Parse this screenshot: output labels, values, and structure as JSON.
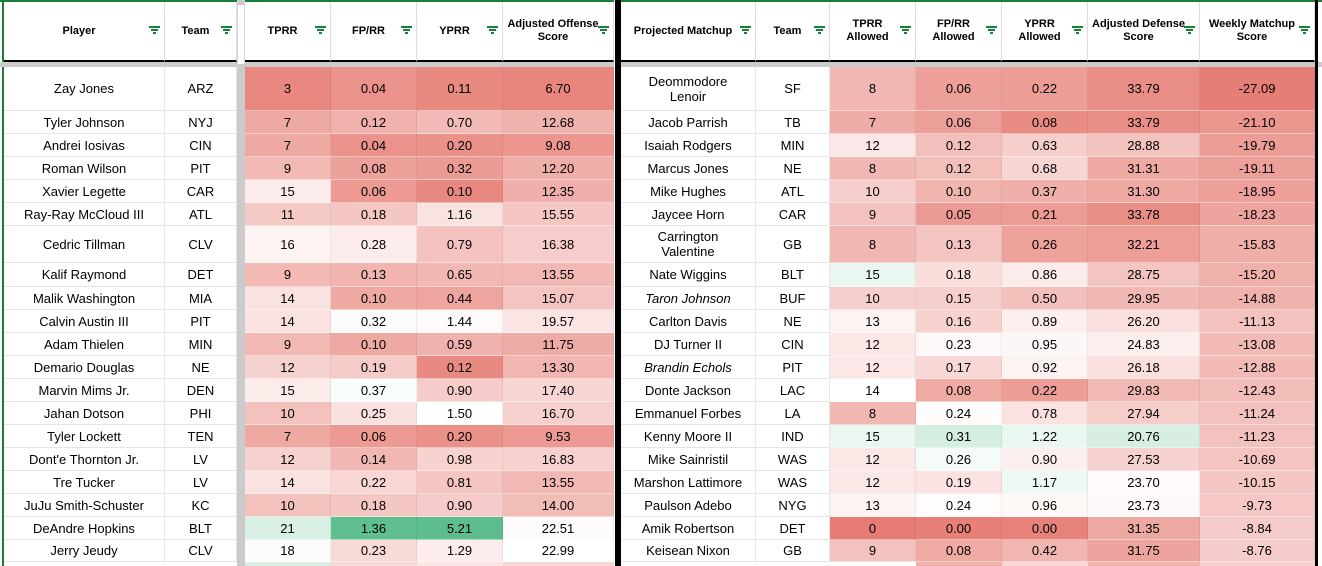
{
  "colors": {
    "accent_green": "#188038",
    "divider_gray": "#cbcbcb",
    "table_border": "#000000",
    "gridline": "#e5e5e5",
    "heat_red": "#e67c73",
    "heat_white": "#ffffff",
    "heat_green": "#57bb8a",
    "filter_icon_green": "#188038"
  },
  "icons": {
    "header_filter": "filter-icon"
  },
  "offense_table": {
    "headers": [
      "Player",
      "Team",
      "TPRR",
      "FP/RR",
      "YPRR",
      "Adjusted Offense Score"
    ],
    "scales": [
      {
        "red": 1.5,
        "white": 17.5,
        "green": 33.0
      },
      {
        "red": -0.02,
        "white": 0.33,
        "green": 1.42
      },
      {
        "red": -0.05,
        "white": 1.5,
        "green": 5.35
      },
      {
        "red": 5.5,
        "white": 23.0,
        "green": 40.0
      }
    ],
    "rows": [
      [
        "Zay Jones",
        "ARZ",
        "3",
        "0.04",
        "0.11",
        "6.70"
      ],
      [
        "Tyler Johnson",
        "NYJ",
        "7",
        "0.12",
        "0.70",
        "12.68"
      ],
      [
        "Andrei Iosivas",
        "CIN",
        "7",
        "0.04",
        "0.20",
        "9.08"
      ],
      [
        "Roman Wilson",
        "PIT",
        "9",
        "0.08",
        "0.32",
        "12.20"
      ],
      [
        "Xavier Legette",
        "CAR",
        "15",
        "0.06",
        "0.10",
        "12.35"
      ],
      [
        "Ray-Ray McCloud III",
        "ATL",
        "11",
        "0.18",
        "1.16",
        "15.55"
      ],
      [
        "Cedric Tillman",
        "CLV",
        "16",
        "0.28",
        "0.79",
        "16.38"
      ],
      [
        "Kalif Raymond",
        "DET",
        "9",
        "0.13",
        "0.65",
        "13.55"
      ],
      [
        "Malik Washington",
        "MIA",
        "14",
        "0.10",
        "0.44",
        "15.07"
      ],
      [
        "Calvin Austin III",
        "PIT",
        "14",
        "0.32",
        "1.44",
        "19.57"
      ],
      [
        "Adam Thielen",
        "MIN",
        "9",
        "0.10",
        "0.59",
        "11.75"
      ],
      [
        "Demario Douglas",
        "NE",
        "12",
        "0.19",
        "0.12",
        "13.30"
      ],
      [
        "Marvin Mims Jr.",
        "DEN",
        "15",
        "0.37",
        "0.90",
        "17.40"
      ],
      [
        "Jahan Dotson",
        "PHI",
        "10",
        "0.25",
        "1.50",
        "16.70"
      ],
      [
        "Tyler Lockett",
        "TEN",
        "7",
        "0.06",
        "0.20",
        "9.53"
      ],
      [
        "Dont'e Thornton Jr.",
        "LV",
        "12",
        "0.14",
        "0.98",
        "16.83"
      ],
      [
        "Tre Tucker",
        "LV",
        "14",
        "0.22",
        "0.81",
        "13.55"
      ],
      [
        "JuJu Smith-Schuster",
        "KC",
        "10",
        "0.18",
        "0.90",
        "14.00"
      ],
      [
        "DeAndre Hopkins",
        "BLT",
        "21",
        "1.36",
        "5.21",
        "22.51"
      ],
      [
        "Jerry Jeudy",
        "CLV",
        "18",
        "0.23",
        "1.29",
        "22.99"
      ]
    ],
    "italic_rows": [],
    "bottom_sliver": [
      "#ffffff",
      "#ffffff",
      "#d8eee3",
      "#f8dbd8",
      "#fbe7e5",
      "#f8d7d3"
    ]
  },
  "defense_table": {
    "headers": [
      "Projected Matchup",
      "Team",
      "TPRR Allowed",
      "FP/RR Allowed",
      "YPRR Allowed",
      "Adjusted Defense Score",
      "Weekly Matchup Score"
    ],
    "scales": [
      {
        "red": 3.0,
        "white": 14.0,
        "green": 22.0
      },
      {
        "red": -0.01,
        "white": 0.245,
        "green": 0.5
      },
      {
        "red": -0.05,
        "white": 1.02,
        "green": 2.6
      },
      {
        "red": 35.5,
        "white": 23.2,
        "green": 13.0
      },
      {
        "red": -27.5,
        "white": 3.0,
        "green": 20.0
      }
    ],
    "rows": [
      [
        "Deommodore Lenoir",
        "SF",
        "8",
        "0.06",
        "0.22",
        "33.79",
        "-27.09"
      ],
      [
        "Jacob Parrish",
        "TB",
        "7",
        "0.06",
        "0.08",
        "33.79",
        "-21.10"
      ],
      [
        "Isaiah Rodgers",
        "MIN",
        "12",
        "0.12",
        "0.63",
        "28.88",
        "-19.79"
      ],
      [
        "Marcus Jones",
        "NE",
        "8",
        "0.12",
        "0.68",
        "31.31",
        "-19.11"
      ],
      [
        "Mike Hughes",
        "ATL",
        "10",
        "0.10",
        "0.37",
        "31.30",
        "-18.95"
      ],
      [
        "Jaycee Horn",
        "CAR",
        "9",
        "0.05",
        "0.21",
        "33.78",
        "-18.23"
      ],
      [
        "Carrington Valentine",
        "GB",
        "8",
        "0.13",
        "0.26",
        "32.21",
        "-15.83"
      ],
      [
        "Nate Wiggins",
        "BLT",
        "15",
        "0.18",
        "0.86",
        "28.75",
        "-15.20"
      ],
      [
        "Taron Johnson",
        "BUF",
        "10",
        "0.15",
        "0.50",
        "29.95",
        "-14.88"
      ],
      [
        "Carlton Davis",
        "NE",
        "13",
        "0.16",
        "0.89",
        "26.20",
        "-11.13"
      ],
      [
        "DJ Turner II",
        "CIN",
        "12",
        "0.23",
        "0.95",
        "24.83",
        "-13.08"
      ],
      [
        "Brandin Echols",
        "PIT",
        "12",
        "0.17",
        "0.92",
        "26.18",
        "-12.88"
      ],
      [
        "Donte Jackson",
        "LAC",
        "14",
        "0.08",
        "0.22",
        "29.83",
        "-12.43"
      ],
      [
        "Emmanuel Forbes",
        "LA",
        "8",
        "0.24",
        "0.78",
        "27.94",
        "-11.24"
      ],
      [
        "Kenny Moore II",
        "IND",
        "15",
        "0.31",
        "1.22",
        "20.76",
        "-11.23"
      ],
      [
        "Mike Sainristil",
        "WAS",
        "12",
        "0.26",
        "0.90",
        "27.53",
        "-10.69"
      ],
      [
        "Marshon Lattimore",
        "WAS",
        "12",
        "0.19",
        "1.17",
        "23.70",
        "-10.15"
      ],
      [
        "Paulson Adebo",
        "NYG",
        "13",
        "0.24",
        "0.96",
        "23.73",
        "-9.73"
      ],
      [
        "Amik Robertson",
        "DET",
        "0",
        "0.00",
        "0.00",
        "31.35",
        "-8.84"
      ],
      [
        "Keisean Nixon",
        "GB",
        "9",
        "0.08",
        "0.42",
        "31.75",
        "-8.76"
      ]
    ],
    "italic_rows": [
      8,
      11
    ],
    "bottom_sliver": [
      "#ffffff",
      "#ffffff",
      "#ffffff",
      "#f1b1aa",
      "#f8d8d4",
      "#f2b6af",
      "#f7d3cf"
    ]
  }
}
